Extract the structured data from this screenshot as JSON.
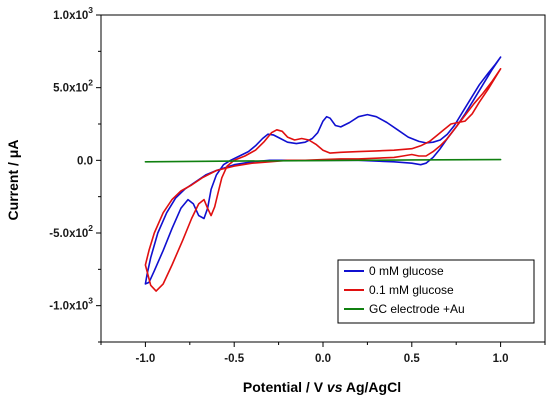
{
  "chart_data": {
    "type": "line",
    "title": "",
    "xlabel": {
      "main": "Potential / V ",
      "italic": "vs",
      "suffix": " Ag/AgCl"
    },
    "ylabel": "Current / μA",
    "xlim": [
      -1.25,
      1.25
    ],
    "ylim": [
      -1.25,
      1.0
    ],
    "y_unit_scale": 1000,
    "grid": false,
    "legend_position": "bottom-right",
    "x_ticks": [
      {
        "value": -1.0,
        "label": "-1.0"
      },
      {
        "value": -0.5,
        "label": "-0.5"
      },
      {
        "value": 0.0,
        "label": "0.0"
      },
      {
        "value": 0.5,
        "label": "0.5"
      },
      {
        "value": 1.0,
        "label": "1.0"
      }
    ],
    "y_ticks": [
      {
        "value": 1.0,
        "mantissa": "1.0x10",
        "exp": "3"
      },
      {
        "value": 0.5,
        "mantissa": "5.0x10",
        "exp": "2"
      },
      {
        "value": 0.0,
        "mantissa": "0.0",
        "exp": ""
      },
      {
        "value": -0.5,
        "mantissa": "-5.0x10",
        "exp": "2"
      },
      {
        "value": -1.0,
        "mantissa": "-1.0x10",
        "exp": "3"
      }
    ],
    "series": [
      {
        "name": "0 mM glucose",
        "color": "#1010d0",
        "points": [
          [
            1.0,
            0.71
          ],
          [
            0.97,
            0.66
          ],
          [
            0.93,
            0.6
          ],
          [
            0.88,
            0.52
          ],
          [
            0.83,
            0.42
          ],
          [
            0.78,
            0.32
          ],
          [
            0.74,
            0.24
          ],
          [
            0.7,
            0.18
          ],
          [
            0.66,
            0.14
          ],
          [
            0.62,
            0.125
          ],
          [
            0.58,
            0.12
          ],
          [
            0.54,
            0.13
          ],
          [
            0.48,
            0.16
          ],
          [
            0.42,
            0.21
          ],
          [
            0.36,
            0.26
          ],
          [
            0.3,
            0.3
          ],
          [
            0.25,
            0.315
          ],
          [
            0.2,
            0.3
          ],
          [
            0.15,
            0.26
          ],
          [
            0.1,
            0.23
          ],
          [
            0.07,
            0.24
          ],
          [
            0.04,
            0.29
          ],
          [
            0.02,
            0.3
          ],
          [
            0.0,
            0.27
          ],
          [
            -0.03,
            0.19
          ],
          [
            -0.06,
            0.15
          ],
          [
            -0.1,
            0.125
          ],
          [
            -0.15,
            0.115
          ],
          [
            -0.2,
            0.125
          ],
          [
            -0.24,
            0.15
          ],
          [
            -0.28,
            0.175
          ],
          [
            -0.31,
            0.18
          ],
          [
            -0.34,
            0.15
          ],
          [
            -0.38,
            0.1
          ],
          [
            -0.42,
            0.06
          ],
          [
            -0.47,
            0.03
          ],
          [
            -0.52,
            0.0
          ],
          [
            -0.56,
            -0.03
          ],
          [
            -0.6,
            -0.1
          ],
          [
            -0.63,
            -0.2
          ],
          [
            -0.65,
            -0.33
          ],
          [
            -0.67,
            -0.4
          ],
          [
            -0.7,
            -0.38
          ],
          [
            -0.73,
            -0.3
          ],
          [
            -0.76,
            -0.27
          ],
          [
            -0.8,
            -0.33
          ],
          [
            -0.85,
            -0.47
          ],
          [
            -0.9,
            -0.62
          ],
          [
            -0.95,
            -0.76
          ],
          [
            -0.98,
            -0.84
          ],
          [
            -1.0,
            -0.85
          ],
          [
            -0.99,
            -0.78
          ],
          [
            -0.97,
            -0.67
          ],
          [
            -0.93,
            -0.5
          ],
          [
            -0.88,
            -0.36
          ],
          [
            -0.83,
            -0.26
          ],
          [
            -0.78,
            -0.2
          ],
          [
            -0.72,
            -0.15
          ],
          [
            -0.66,
            -0.1
          ],
          [
            -0.6,
            -0.07
          ],
          [
            -0.55,
            -0.05
          ],
          [
            -0.5,
            -0.03
          ],
          [
            -0.4,
            -0.01
          ],
          [
            -0.3,
            0.0
          ],
          [
            -0.2,
            0.0
          ],
          [
            -0.1,
            0.0
          ],
          [
            0.0,
            0.0
          ],
          [
            0.1,
            0.0
          ],
          [
            0.2,
            0.0
          ],
          [
            0.3,
            -0.005
          ],
          [
            0.4,
            -0.01
          ],
          [
            0.5,
            -0.02
          ],
          [
            0.55,
            -0.03
          ],
          [
            0.58,
            -0.02
          ],
          [
            0.62,
            0.02
          ],
          [
            0.66,
            0.08
          ],
          [
            0.7,
            0.15
          ],
          [
            0.75,
            0.23
          ],
          [
            0.8,
            0.32
          ],
          [
            0.85,
            0.42
          ],
          [
            0.9,
            0.52
          ],
          [
            0.95,
            0.62
          ],
          [
            1.0,
            0.71
          ]
        ]
      },
      {
        "name": "0.1 mM glucose",
        "color": "#e01010",
        "points": [
          [
            1.0,
            0.63
          ],
          [
            0.97,
            0.57
          ],
          [
            0.93,
            0.49
          ],
          [
            0.88,
            0.4
          ],
          [
            0.84,
            0.32
          ],
          [
            0.8,
            0.27
          ],
          [
            0.76,
            0.26
          ],
          [
            0.72,
            0.25
          ],
          [
            0.68,
            0.21
          ],
          [
            0.64,
            0.17
          ],
          [
            0.6,
            0.13
          ],
          [
            0.55,
            0.1
          ],
          [
            0.5,
            0.08
          ],
          [
            0.4,
            0.07
          ],
          [
            0.3,
            0.065
          ],
          [
            0.2,
            0.06
          ],
          [
            0.1,
            0.055
          ],
          [
            0.04,
            0.05
          ],
          [
            0.0,
            0.07
          ],
          [
            -0.04,
            0.11
          ],
          [
            -0.08,
            0.14
          ],
          [
            -0.12,
            0.15
          ],
          [
            -0.16,
            0.14
          ],
          [
            -0.2,
            0.16
          ],
          [
            -0.23,
            0.2
          ],
          [
            -0.26,
            0.21
          ],
          [
            -0.29,
            0.19
          ],
          [
            -0.33,
            0.13
          ],
          [
            -0.38,
            0.07
          ],
          [
            -0.44,
            0.03
          ],
          [
            -0.5,
            0.0
          ],
          [
            -0.54,
            -0.04
          ],
          [
            -0.57,
            -0.12
          ],
          [
            -0.59,
            -0.22
          ],
          [
            -0.61,
            -0.32
          ],
          [
            -0.63,
            -0.38
          ],
          [
            -0.65,
            -0.33
          ],
          [
            -0.67,
            -0.27
          ],
          [
            -0.7,
            -0.3
          ],
          [
            -0.74,
            -0.4
          ],
          [
            -0.79,
            -0.55
          ],
          [
            -0.85,
            -0.72
          ],
          [
            -0.9,
            -0.85
          ],
          [
            -0.94,
            -0.9
          ],
          [
            -0.97,
            -0.86
          ],
          [
            -1.0,
            -0.72
          ],
          [
            -0.98,
            -0.62
          ],
          [
            -0.95,
            -0.5
          ],
          [
            -0.9,
            -0.36
          ],
          [
            -0.85,
            -0.27
          ],
          [
            -0.8,
            -0.21
          ],
          [
            -0.74,
            -0.17
          ],
          [
            -0.68,
            -0.12
          ],
          [
            -0.6,
            -0.07
          ],
          [
            -0.5,
            -0.04
          ],
          [
            -0.4,
            -0.02
          ],
          [
            -0.3,
            -0.01
          ],
          [
            -0.2,
            0.0
          ],
          [
            -0.1,
            0.0
          ],
          [
            0.0,
            0.005
          ],
          [
            0.1,
            0.01
          ],
          [
            0.2,
            0.01
          ],
          [
            0.3,
            0.015
          ],
          [
            0.4,
            0.02
          ],
          [
            0.45,
            0.03
          ],
          [
            0.5,
            0.04
          ],
          [
            0.54,
            0.03
          ],
          [
            0.58,
            0.03
          ],
          [
            0.62,
            0.06
          ],
          [
            0.66,
            0.1
          ],
          [
            0.7,
            0.15
          ],
          [
            0.75,
            0.23
          ],
          [
            0.8,
            0.31
          ],
          [
            0.85,
            0.39
          ],
          [
            0.9,
            0.46
          ],
          [
            0.95,
            0.54
          ],
          [
            1.0,
            0.63
          ]
        ]
      },
      {
        "name": "GC electrode +Au",
        "color": "#108010",
        "points": [
          [
            -1.0,
            -0.01
          ],
          [
            -0.5,
            -0.005
          ],
          [
            0.0,
            -0.002
          ],
          [
            0.5,
            0.003
          ],
          [
            1.0,
            0.005
          ]
        ]
      }
    ]
  }
}
